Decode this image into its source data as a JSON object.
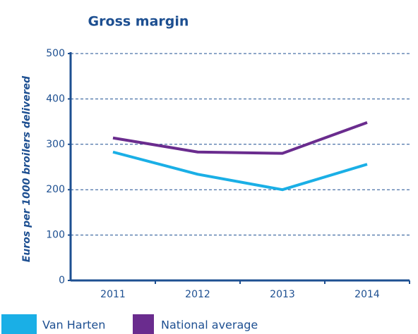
{
  "chart_data": {
    "type": "line",
    "title": "Gross margin",
    "ylabel": "Euros per 1000 broilers delivered",
    "categories": [
      "2011",
      "2012",
      "2013",
      "2014"
    ],
    "series": [
      {
        "name": "Van Harten",
        "color": "#1aafe6",
        "values": [
          283,
          234,
          200,
          256
        ]
      },
      {
        "name": "National average",
        "color": "#6a2c8e",
        "values": [
          314,
          283,
          280,
          348
        ]
      }
    ],
    "ylim": [
      0,
      500
    ],
    "yticks": [
      0,
      100,
      200,
      300,
      400,
      500
    ],
    "grid": true
  }
}
